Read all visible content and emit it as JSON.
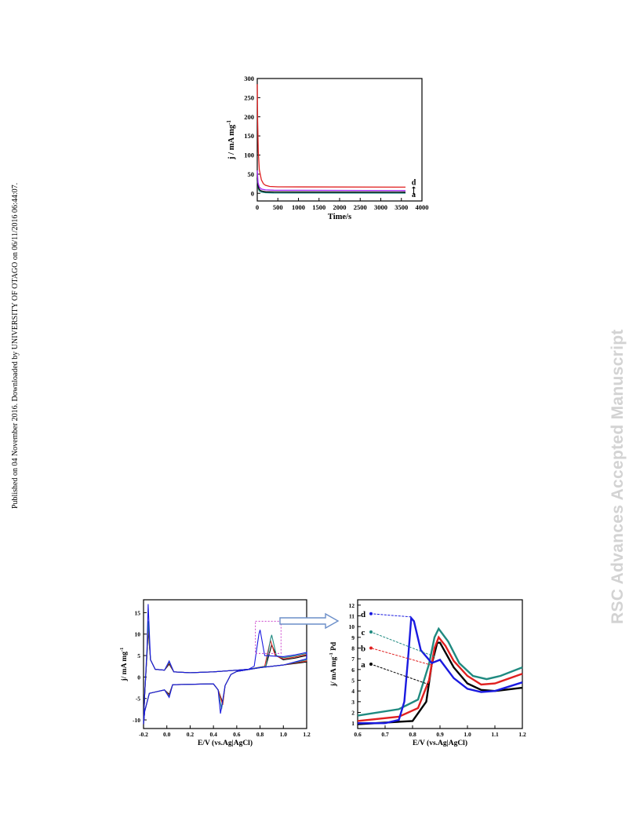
{
  "page": {
    "side_note": "Published on 04 November 2016. Downloaded by UNIVERSITY OF OTAGO on 06/11/2016 06:44:07.",
    "watermark": "RSC Advances Accepted Manuscript"
  },
  "colors": {
    "a": "#000000",
    "b": "#e02020",
    "c": "#1f8a80",
    "d": "#1a1ae0",
    "highlight": "#cc44cc",
    "arrow": "#6c8fc9"
  },
  "chart_data": [
    {
      "type": "line",
      "xlabel": "Time/s",
      "ylabel": "j / mA mg",
      "ylabel_sup": "-1",
      "xlim": [
        0,
        4000
      ],
      "ylim": [
        -20,
        300
      ],
      "xticks": [
        0,
        500,
        1000,
        1500,
        2000,
        2500,
        3000,
        3500,
        4000
      ],
      "yticks": [
        0,
        50,
        100,
        150,
        200,
        250,
        300
      ],
      "annotation": {
        "top": "d",
        "bottom": "a"
      },
      "series": [
        {
          "key": "a",
          "color": "#1f8a80",
          "points": [
            [
              0,
              35
            ],
            [
              20,
              15
            ],
            [
              50,
              6
            ],
            [
              100,
              3
            ],
            [
              200,
              1.5
            ],
            [
              400,
              1
            ],
            [
              3600,
              0.5
            ]
          ]
        },
        {
          "key": "b",
          "color": "#000000",
          "points": [
            [
              0,
              40
            ],
            [
              20,
              20
            ],
            [
              50,
              10
            ],
            [
              100,
              6
            ],
            [
              200,
              4
            ],
            [
              400,
              3.5
            ],
            [
              3600,
              3
            ]
          ]
        },
        {
          "key": "c",
          "color": "#a020f0",
          "points": [
            [
              0,
              60
            ],
            [
              20,
              28
            ],
            [
              50,
              16
            ],
            [
              100,
              11
            ],
            [
              200,
              9
            ],
            [
              400,
              8
            ],
            [
              3600,
              7
            ]
          ]
        },
        {
          "key": "d",
          "color": "#e02020",
          "points": [
            [
              0,
              285
            ],
            [
              10,
              190
            ],
            [
              25,
              110
            ],
            [
              50,
              62
            ],
            [
              100,
              35
            ],
            [
              150,
              25
            ],
            [
              200,
              21
            ],
            [
              300,
              18
            ],
            [
              500,
              17
            ],
            [
              3600,
              16
            ]
          ]
        }
      ]
    },
    {
      "type": "line",
      "xlabel": "E/V (vs.Ag|AgCl)",
      "ylabel": "j/ mA mg",
      "ylabel_sup": "-1",
      "xlim": [
        -0.2,
        1.2
      ],
      "ylim": [
        -12,
        18
      ],
      "xticks": [
        -0.2,
        0.0,
        0.2,
        0.4,
        0.6,
        0.8,
        1.0,
        1.2
      ],
      "xtick_labels": [
        "-0.2",
        "0.0",
        "0.2",
        "0.4",
        "0.6",
        "0.8",
        "1.0",
        "1.2"
      ],
      "yticks": [
        -10,
        -5,
        0,
        5,
        10,
        15
      ],
      "series": [
        {
          "key": "a",
          "color": "#000000",
          "peak_forward": [
            0.9,
            7.5
          ],
          "peak_reverse": [
            0.48,
            -6
          ],
          "h_peak": 11
        },
        {
          "key": "b",
          "color": "#e02020",
          "peak_forward": [
            0.89,
            8.5
          ],
          "peak_reverse": [
            0.48,
            -6.5
          ],
          "h_peak": 12
        },
        {
          "key": "c",
          "color": "#1f8a80",
          "peak_forward": [
            0.9,
            9.8
          ],
          "peak_reverse": [
            0.47,
            -7.5
          ],
          "h_peak": 13
        },
        {
          "key": "d",
          "color": "#1a1ae0",
          "peak_forward": [
            0.8,
            11
          ],
          "peak_reverse": [
            0.46,
            -8.5
          ],
          "h_peak": 17
        }
      ]
    },
    {
      "type": "line",
      "xlabel": "E/V (vs.Ag|AgCl)",
      "ylabel": "j/ mA mg",
      "ylabel_sup": "-1",
      "ylabel_tail": "Pd",
      "xlim": [
        0.6,
        1.2
      ],
      "ylim": [
        0.5,
        12.5
      ],
      "xticks": [
        0.6,
        0.7,
        0.8,
        0.9,
        1.0,
        1.1,
        1.2
      ],
      "xtick_labels": [
        "0.6",
        "0.7",
        "0.8",
        "0.9",
        "1.0",
        "1.1",
        "1.2"
      ],
      "yticks": [
        1,
        2,
        3,
        4,
        5,
        6,
        7,
        8,
        9,
        10,
        11,
        12
      ],
      "labels": [
        "d",
        "c",
        "b",
        "a"
      ],
      "series": [
        {
          "key": "a",
          "color": "#000000",
          "points": [
            [
              0.6,
              0.9
            ],
            [
              0.8,
              1.2
            ],
            [
              0.85,
              3
            ],
            [
              0.87,
              6.5
            ],
            [
              0.89,
              8.5
            ],
            [
              0.9,
              8.5
            ],
            [
              0.95,
              6.2
            ],
            [
              1.0,
              4.7
            ],
            [
              1.05,
              4.1
            ],
            [
              1.1,
              4.0
            ],
            [
              1.2,
              4.3
            ]
          ]
        },
        {
          "key": "b",
          "color": "#e02020",
          "points": [
            [
              0.6,
              1.2
            ],
            [
              0.75,
              1.6
            ],
            [
              0.82,
              2.4
            ],
            [
              0.86,
              5
            ],
            [
              0.88,
              8
            ],
            [
              0.895,
              9
            ],
            [
              0.92,
              8.2
            ],
            [
              0.95,
              6.8
            ],
            [
              1.0,
              5.4
            ],
            [
              1.05,
              4.6
            ],
            [
              1.1,
              4.7
            ],
            [
              1.2,
              5.6
            ]
          ]
        },
        {
          "key": "c",
          "color": "#1f8a80",
          "points": [
            [
              0.6,
              1.7
            ],
            [
              0.75,
              2.3
            ],
            [
              0.82,
              3.2
            ],
            [
              0.86,
              6.5
            ],
            [
              0.88,
              9
            ],
            [
              0.895,
              9.8
            ],
            [
              0.93,
              8.6
            ],
            [
              0.97,
              6.6
            ],
            [
              1.02,
              5.4
            ],
            [
              1.07,
              5.1
            ],
            [
              1.12,
              5.4
            ],
            [
              1.2,
              6.2
            ]
          ]
        },
        {
          "key": "d",
          "color": "#1a1ae0",
          "points": [
            [
              0.6,
              1.0
            ],
            [
              0.7,
              1.0
            ],
            [
              0.75,
              1.3
            ],
            [
              0.77,
              3
            ],
            [
              0.785,
              7.5
            ],
            [
              0.795,
              10.8
            ],
            [
              0.805,
              10.5
            ],
            [
              0.83,
              7.8
            ],
            [
              0.87,
              6.6
            ],
            [
              0.9,
              6.9
            ],
            [
              0.95,
              5.2
            ],
            [
              1.0,
              4.2
            ],
            [
              1.05,
              3.9
            ],
            [
              1.1,
              4.0
            ],
            [
              1.2,
              4.8
            ]
          ]
        }
      ]
    }
  ]
}
